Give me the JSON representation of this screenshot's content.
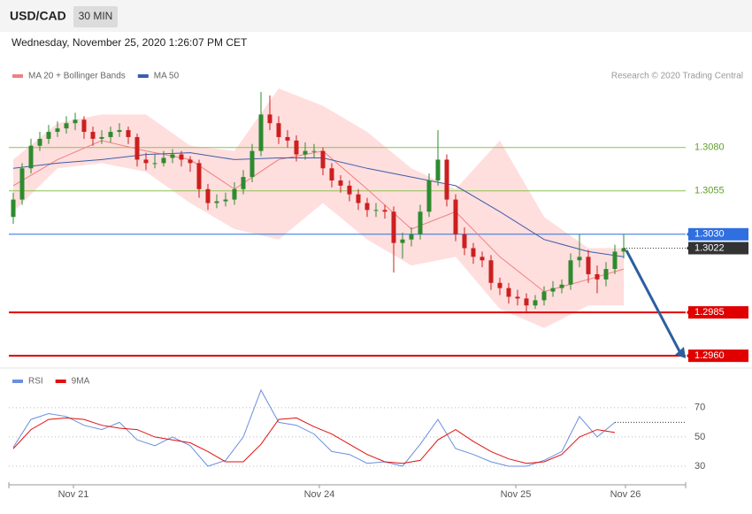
{
  "header": {
    "symbol": "USD/CAD",
    "timeframe": "30 MIN",
    "timestamp": "Wednesday, November 25, 2020 1:26:07 PM CET"
  },
  "chart_data": [
    {
      "type": "candlestick",
      "credit": "Research © 2020 Trading Central",
      "ylim": [
        1.2956,
        1.3114
      ],
      "xlim": [
        -0.5,
        76
      ],
      "up_color": "#2e8b2e",
      "down_color": "#cc1f1f",
      "candles": [
        [
          1.304,
          1.3054,
          1.3036,
          1.305
        ],
        [
          1.305,
          1.3071,
          1.3047,
          1.3068
        ],
        [
          1.3068,
          1.3085,
          1.3065,
          1.3081
        ],
        [
          1.3081,
          1.3089,
          1.3078,
          1.3085
        ],
        [
          1.3085,
          1.3093,
          1.3082,
          1.3089
        ],
        [
          1.3089,
          1.3095,
          1.3086,
          1.3091
        ],
        [
          1.3091,
          1.3098,
          1.3088,
          1.3094
        ],
        [
          1.3094,
          1.31,
          1.309,
          1.3096
        ],
        [
          1.3096,
          1.3098,
          1.3085,
          1.3089
        ],
        [
          1.3089,
          1.3092,
          1.3081,
          1.3085
        ],
        [
          1.3085,
          1.309,
          1.3082,
          1.3086
        ],
        [
          1.3086,
          1.3092,
          1.3083,
          1.3089
        ],
        [
          1.3089,
          1.3094,
          1.3086,
          1.309
        ],
        [
          1.309,
          1.3092,
          1.3082,
          1.3086
        ],
        [
          1.3086,
          1.3088,
          1.3069,
          1.3073
        ],
        [
          1.3073,
          1.3077,
          1.3067,
          1.3071
        ],
        [
          1.3071,
          1.3076,
          1.3068,
          1.3071
        ],
        [
          1.3071,
          1.3078,
          1.3069,
          1.3074
        ],
        [
          1.3074,
          1.3079,
          1.3071,
          1.3076
        ],
        [
          1.3076,
          1.3078,
          1.3069,
          1.3073
        ],
        [
          1.3073,
          1.3075,
          1.3066,
          1.3071
        ],
        [
          1.3071,
          1.3073,
          1.3051,
          1.3056
        ],
        [
          1.3056,
          1.3059,
          1.3044,
          1.3048
        ],
        [
          1.3048,
          1.3053,
          1.3045,
          1.3049
        ],
        [
          1.3049,
          1.3054,
          1.3046,
          1.305
        ],
        [
          1.305,
          1.306,
          1.3047,
          1.3056
        ],
        [
          1.3056,
          1.3067,
          1.3053,
          1.3063
        ],
        [
          1.3063,
          1.3082,
          1.306,
          1.3078
        ],
        [
          1.3078,
          1.3112,
          1.3075,
          1.3099
        ],
        [
          1.3099,
          1.311,
          1.309,
          1.3094
        ],
        [
          1.3094,
          1.3098,
          1.3082,
          1.3086
        ],
        [
          1.3086,
          1.309,
          1.308,
          1.3084
        ],
        [
          1.3084,
          1.3087,
          1.3072,
          1.3076
        ],
        [
          1.3076,
          1.3083,
          1.3073,
          1.3078
        ],
        [
          1.3078,
          1.3082,
          1.3074,
          1.3078
        ],
        [
          1.3078,
          1.308,
          1.3064,
          1.3068
        ],
        [
          1.3068,
          1.3071,
          1.3057,
          1.3061
        ],
        [
          1.3061,
          1.3064,
          1.3054,
          1.3058
        ],
        [
          1.3058,
          1.3061,
          1.3049,
          1.3053
        ],
        [
          1.3053,
          1.3056,
          1.3044,
          1.3048
        ],
        [
          1.3048,
          1.3051,
          1.304,
          1.3044
        ],
        [
          1.3044,
          1.3048,
          1.304,
          1.3044
        ],
        [
          1.3044,
          1.3047,
          1.3039,
          1.3043
        ],
        [
          1.3043,
          1.3046,
          1.3008,
          1.3025
        ],
        [
          1.3025,
          1.3031,
          1.3016,
          1.3027
        ],
        [
          1.3027,
          1.3034,
          1.3023,
          1.303
        ],
        [
          1.303,
          1.3047,
          1.3027,
          1.3043
        ],
        [
          1.3043,
          1.3065,
          1.304,
          1.3061
        ],
        [
          1.3061,
          1.309,
          1.3058,
          1.3073
        ],
        [
          1.3073,
          1.3076,
          1.3046,
          1.305
        ],
        [
          1.305,
          1.3053,
          1.3026,
          1.303
        ],
        [
          1.303,
          1.3034,
          1.3018,
          1.3022
        ],
        [
          1.3022,
          1.3025,
          1.3013,
          1.3017
        ],
        [
          1.3017,
          1.302,
          1.3011,
          1.3015
        ],
        [
          1.3015,
          1.3018,
          1.2998,
          1.3002
        ],
        [
          1.3002,
          1.3005,
          1.2995,
          1.2999
        ],
        [
          1.2999,
          1.3002,
          1.299,
          1.2994
        ],
        [
          1.2994,
          1.2998,
          1.2989,
          1.2993
        ],
        [
          1.2993,
          1.2996,
          1.2985,
          1.2989
        ],
        [
          1.2989,
          1.2995,
          1.2987,
          1.2992
        ],
        [
          1.2992,
          1.3,
          1.2989,
          1.2997
        ],
        [
          1.2997,
          1.3003,
          1.2994,
          1.2999
        ],
        [
          1.2999,
          1.3004,
          1.2996,
          1.3001
        ],
        [
          1.3001,
          1.3019,
          1.2998,
          1.3015
        ],
        [
          1.3015,
          1.303,
          1.3011,
          1.3017
        ],
        [
          1.3017,
          1.3021,
          1.3002,
          1.3007
        ],
        [
          1.3007,
          1.3012,
          1.2996,
          1.3004
        ],
        [
          1.3004,
          1.3014,
          1.3,
          1.301
        ],
        [
          1.301,
          1.3024,
          1.3007,
          1.302
        ],
        [
          1.302,
          1.303,
          1.3016,
          1.3022
        ]
      ],
      "x": [
        0,
        5,
        10,
        15,
        20,
        25,
        30,
        35,
        40,
        45,
        50,
        55,
        60,
        65,
        69
      ],
      "series": [
        {
          "name": "MA 20 + Bollinger Bands",
          "color": "#f08080",
          "values": [
            1.3058,
            1.3073,
            1.3084,
            1.3078,
            1.3073,
            1.3056,
            1.3073,
            1.3078,
            1.3056,
            1.3033,
            1.3043,
            1.3017,
            1.2997,
            1.3004,
            1.301
          ]
        },
        {
          "name": "MA 50",
          "color": "#3b5ea8",
          "values": [
            1.3068,
            1.3071,
            1.3073,
            1.3076,
            1.3077,
            1.3073,
            1.3074,
            1.3074,
            1.3068,
            1.3063,
            1.3058,
            1.3043,
            1.3027,
            1.302,
            1.3017
          ]
        }
      ],
      "bands": {
        "color": "#ffdede",
        "upper": [
          1.3073,
          1.3094,
          1.3099,
          1.3099,
          1.3081,
          1.3078,
          1.3114,
          1.3104,
          1.3089,
          1.3068,
          1.3056,
          1.3084,
          1.304,
          1.3022,
          1.3022
        ],
        "lower": [
          1.3043,
          1.3068,
          1.3071,
          1.3066,
          1.3048,
          1.3033,
          1.3027,
          1.3048,
          1.3027,
          1.3012,
          1.3017,
          1.2987,
          1.2976,
          1.2989,
          1.2989
        ]
      },
      "levels": [
        {
          "value": 1.308,
          "label": "1.3080",
          "color": "#8cc152"
        },
        {
          "value": 1.3055,
          "color": "#8cc152"
        },
        {
          "value": 1.303,
          "label": "1.3030",
          "color": "#2f6fe0"
        },
        {
          "value": 1.2985,
          "color": "#e00000"
        },
        {
          "value": 1.296,
          "label": "1.2960",
          "color": "#e00000"
        }
      ],
      "last": {
        "value": 1.3022,
        "color": "#333333"
      }
    },
    {
      "type": "line",
      "xlim": [
        -0.5,
        76
      ],
      "ylim": [
        20,
        82
      ],
      "yticks": [
        30,
        50,
        70
      ],
      "xticks": [
        {
          "value": 6.8,
          "label": "Nov 21"
        },
        {
          "value": 34.6,
          "label": "Nov 24"
        },
        {
          "value": 56.8,
          "label": "Nov 25"
        },
        {
          "value": 69.2,
          "label": "Nov 26"
        }
      ],
      "x": [
        0,
        2,
        4,
        6,
        8,
        10,
        12,
        14,
        16,
        18,
        20,
        22,
        24,
        26,
        28,
        30,
        32,
        34,
        36,
        38,
        40,
        42,
        44,
        46,
        48,
        50,
        52,
        54,
        56,
        58,
        60,
        62,
        64,
        66,
        68
      ],
      "series": [
        {
          "name": "RSI",
          "color": "#6a8fdc",
          "values": [
            43,
            62,
            66,
            64,
            58,
            55,
            60,
            48,
            44,
            50,
            44,
            30,
            34,
            50,
            82,
            60,
            58,
            52,
            40,
            38,
            32,
            33,
            30,
            45,
            62,
            42,
            38,
            33,
            30,
            30,
            34,
            40,
            64,
            50,
            60
          ]
        },
        {
          "name": "9MA",
          "color": "#e01010",
          "values": [
            42,
            55,
            62,
            63,
            62,
            58,
            56,
            55,
            50,
            48,
            46,
            40,
            33,
            33,
            45,
            62,
            63,
            57,
            52,
            45,
            38,
            33,
            32,
            34,
            48,
            55,
            47,
            40,
            35,
            32,
            33,
            38,
            50,
            55,
            53
          ]
        }
      ]
    }
  ]
}
